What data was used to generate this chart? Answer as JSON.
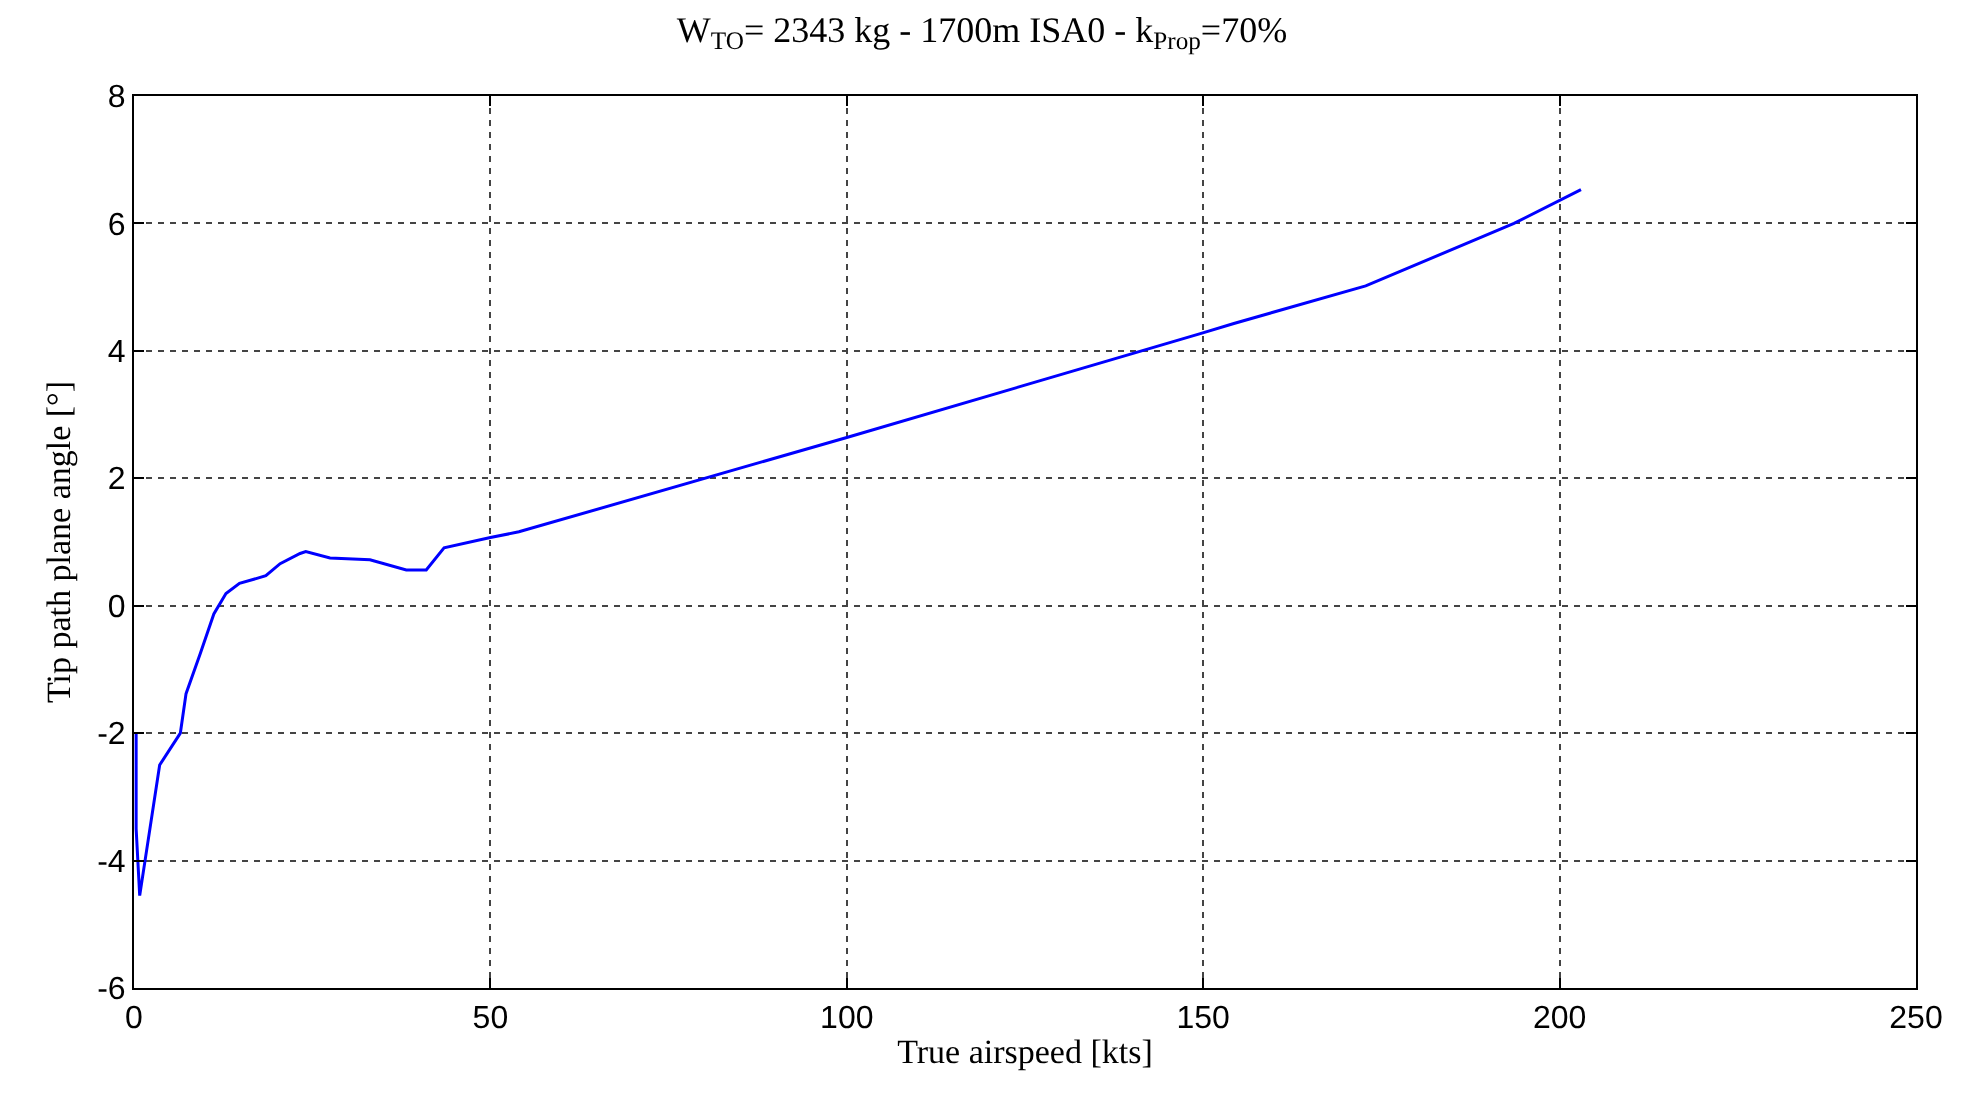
{
  "chart_data": {
    "type": "line",
    "title": "W$_{TO}$= 2343 kg - 1700m ISA0 - k$_{Prop}$=70%",
    "xlabel": "True airspeed [kts]",
    "ylabel": "Tip path plane angle [°]",
    "xlim": [
      0,
      250
    ],
    "xticks": [
      0,
      50,
      100,
      150,
      200,
      250
    ],
    "ylim": [
      -6,
      8
    ],
    "yticks": [
      -6,
      -4,
      -2,
      0,
      2,
      4,
      6,
      8
    ],
    "grid": true,
    "line_style": "solid",
    "series": [
      {
        "color": "#0000ff",
        "x": [
          0.3,
          0.3,
          0.8,
          3.6,
          6.5,
          7.3,
          9.3,
          11.2,
          12.9,
          14.8,
          18.5,
          20.5,
          23.3,
          24.1,
          27.5,
          33.1,
          38.2,
          41,
          43.5,
          50,
          54,
          100,
          149.6,
          154.3,
          172.8,
          193.6,
          203
        ],
        "values": [
          -2.0,
          -3.5,
          -4.55,
          -2.5,
          -2.0,
          -1.38,
          -0.75,
          -0.13,
          0.19,
          0.35,
          0.47,
          0.66,
          0.82,
          0.85,
          0.75,
          0.72,
          0.56,
          0.56,
          0.91,
          1.07,
          1.16,
          2.64,
          4.27,
          4.43,
          5.02,
          6.0,
          6.53
        ]
      }
    ]
  }
}
